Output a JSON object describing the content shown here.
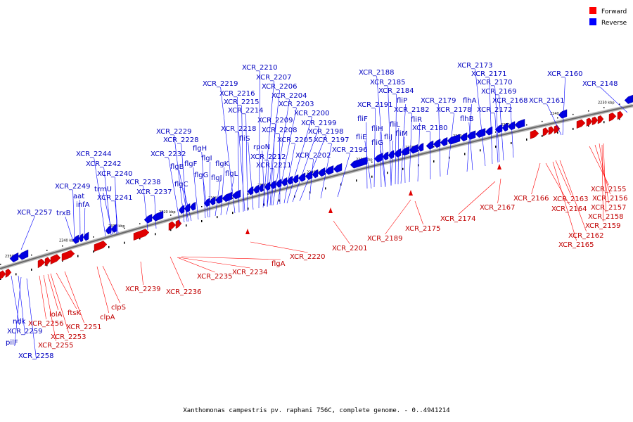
{
  "caption": "Xanthomonas campestris pv. raphani 756C, complete genome. - 0..4941214",
  "legend": [
    {
      "label": "Forward",
      "color": "#ff0000"
    },
    {
      "label": "Reverse",
      "color": "#0000ff"
    }
  ],
  "colors": {
    "forward": "#e00000",
    "reverse": "#0000e0",
    "forward_label": "#c00000",
    "reverse_label": "#0000c0",
    "backbone": "#9c9c9c"
  },
  "ticks": [
    "2350 kbp",
    "2340 kbp",
    "2330 kbp",
    "2320 kbp",
    "2310 kbp",
    "2300 kbp",
    "2290 kbp",
    "2280 kbp",
    "2270 kbp",
    "2260 kbp",
    "2250 kbp",
    "2240 kbp",
    "2230 kbp"
  ],
  "reverse_labels": [
    "XCR_2257",
    "XCR_2249",
    "trxB",
    "aat",
    "infA",
    "XCR_2244",
    "XCR_2242",
    "XCR_2240",
    "trmU",
    "XCR_2241",
    "XCR_2238",
    "XCR_2237",
    "XCR_2232",
    "XCR_2229",
    "XCR_2228",
    "flgB",
    "flgC",
    "flgF",
    "flgH",
    "flgI",
    "flgG",
    "flgJ",
    "flgK",
    "flgL",
    "XCR_2219",
    "XCR_2216",
    "XCR_2215",
    "XCR_2214",
    "XCR_2218",
    "fliS",
    "XCR_2210",
    "XCR_2207",
    "XCR_2206",
    "XCR_2204",
    "XCR_2203",
    "XCR_2209",
    "rpoN",
    "XCR_2212",
    "XCR_2211",
    "XCR_2208",
    "XCR_2200",
    "XCR_2199",
    "XCR_2205",
    "XCR_2198",
    "XCR_2202",
    "XCR_2197",
    "XCR_2196",
    "XCR_2188",
    "XCR_2185",
    "XCR_2184",
    "fliP",
    "XCR_2191",
    "XCR_2182",
    "fliF",
    "fliH",
    "fliE",
    "fliG",
    "fliJ",
    "fliL",
    "fliM",
    "fliR",
    "XCR_2180",
    "XCR_2179",
    "XCR_2178",
    "flhA",
    "flhB",
    "XCR_2173",
    "XCR_2171",
    "XCR_2170",
    "XCR_2169",
    "XCR_2168",
    "XCR_2172",
    "XCR_2161",
    "XCR_2160",
    "XCR_2148",
    "ndk",
    "XCR_2259",
    "pilF",
    "XCR_2258"
  ],
  "forward_labels": [
    "XCR_2256",
    "lolA",
    "ftsK",
    "XCR_2253",
    "XCR_2251",
    "XCR_2255",
    "clpS",
    "clpA",
    "XCR_2239",
    "XCR_2236",
    "XCR_2235",
    "XCR_2234",
    "flgA",
    "XCR_2220",
    "XCR_2201",
    "XCR_2189",
    "XCR_2175",
    "XCR_2174",
    "XCR_2167",
    "XCR_2166",
    "XCR_2163",
    "XCR_2164",
    "XCR_2155",
    "XCR_2156",
    "XCR_2157",
    "XCR_2158",
    "XCR_2159",
    "XCR_2162",
    "XCR_2165"
  ]
}
